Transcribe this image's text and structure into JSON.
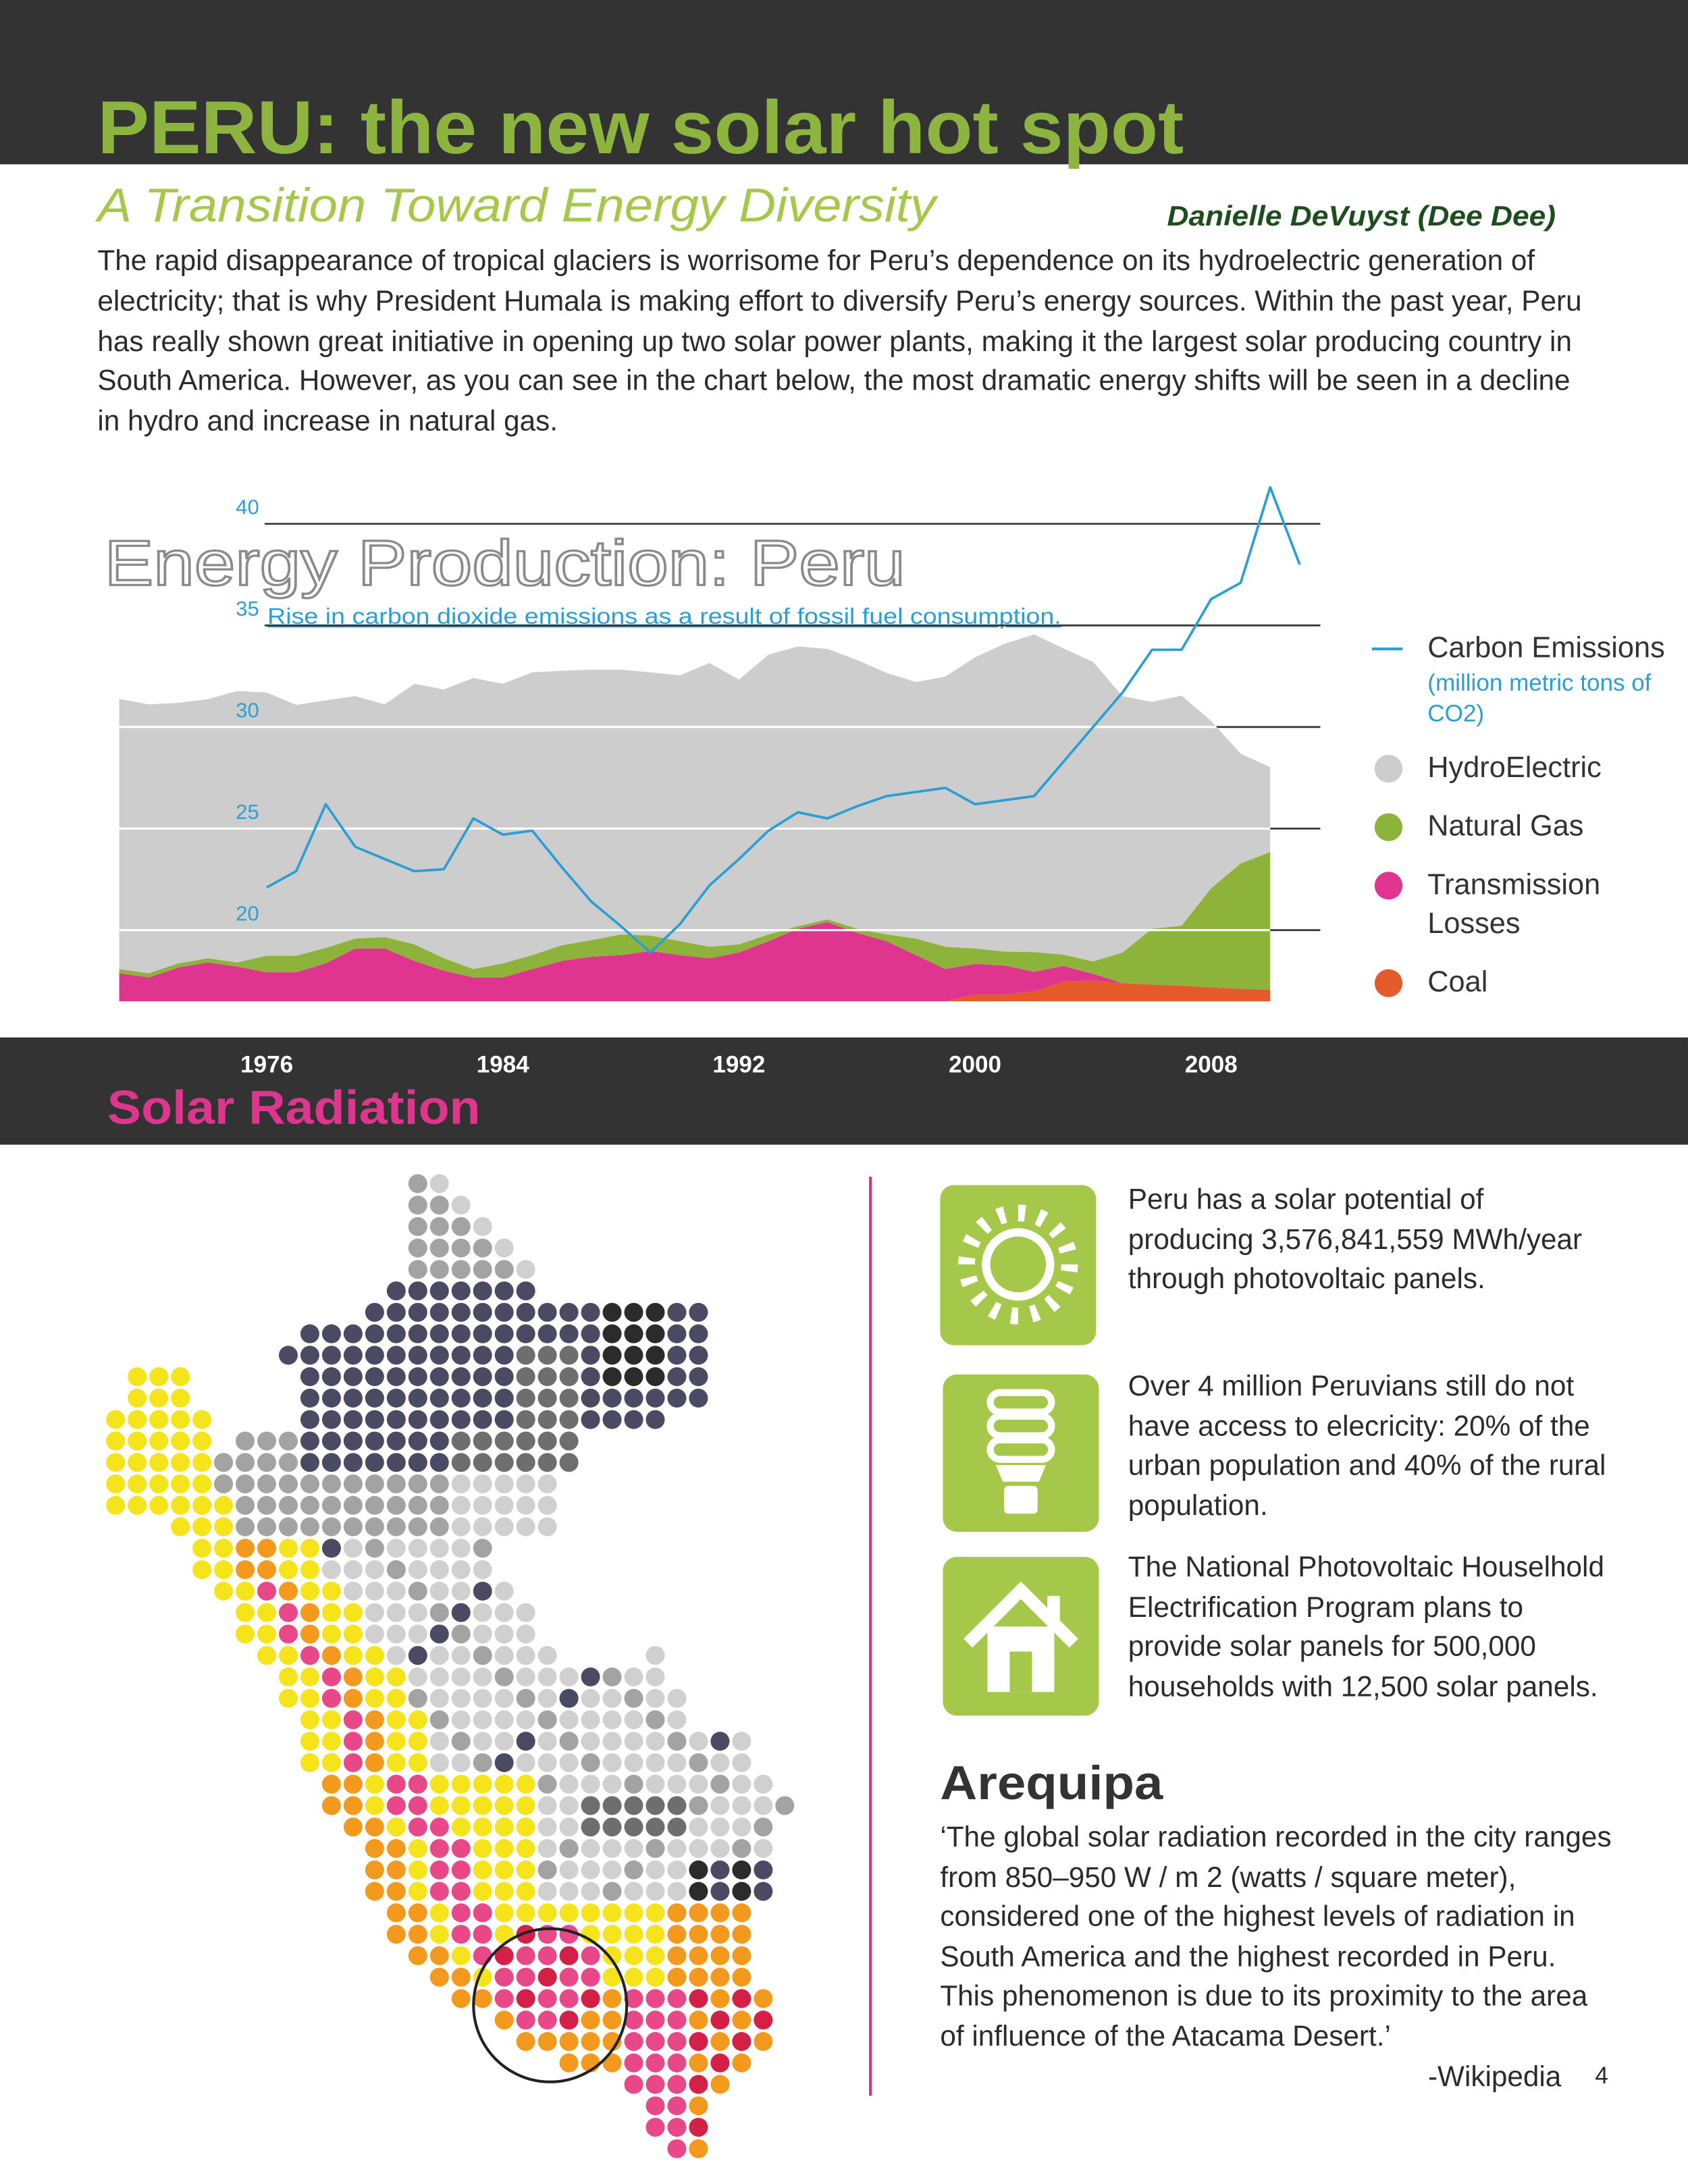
{
  "header": {
    "title": "PERU: the new solar hot spot",
    "subtitle": "A Transition Toward Energy Diversity",
    "author": "Danielle DeVuyst (Dee Dee)"
  },
  "intro": "The rapid disappearance of tropical glaciers is worrisome for Peru’s dependence on its hydroelectric generation of electricity; that is why President Humala is making effort to diversify Peru’s energy sources. Within the past year, Peru has really shown great initiative in opening up two solar power plants, making it the largest solar producing country in South America.  However, as you can see in the chart below, the most dramatic energy shifts will be seen in a decline in hydro and increase in natural gas.",
  "chart_data": {
    "type": "area",
    "title": "Energy Production: Peru",
    "subtitle": "Rise in carbon dioxide emissions as a result of fossil fuel consumption.",
    "y_label": "(million metric tons of CO2)",
    "x": [
      1971,
      1972,
      1973,
      1974,
      1975,
      1976,
      1977,
      1978,
      1979,
      1980,
      1981,
      1982,
      1983,
      1984,
      1985,
      1986,
      1987,
      1988,
      1989,
      1990,
      1991,
      1992,
      1993,
      1994,
      1995,
      1996,
      1997,
      1998,
      1999,
      2000,
      2001,
      2002,
      2003,
      2004,
      2005,
      2006,
      2007,
      2008,
      2009,
      2010,
      2011
    ],
    "xlim": [
      1970.5,
      2011.7
    ],
    "xticks": [
      1976,
      1984,
      1992,
      2000,
      2008
    ],
    "ylim": [
      16.5,
      42
    ],
    "yticks": [
      20,
      25,
      30,
      35,
      40
    ],
    "y2lim": [
      0,
      100
    ],
    "grid": true,
    "legend": "right",
    "series": [
      {
        "name": "Carbon Emissions",
        "type": "line",
        "color": "#2a9fd6",
        "values": [
          null,
          null,
          null,
          null,
          null,
          22.1,
          22.9,
          26.2,
          24.1,
          23.5,
          22.9,
          23.0,
          25.5,
          24.7,
          24.9,
          23.1,
          21.4,
          20.2,
          18.9,
          20.3,
          22.2,
          23.5,
          24.9,
          25.8,
          25.5,
          26.1,
          26.6,
          26.8,
          27.0,
          26.2,
          26.4,
          26.6,
          28.3,
          30.0,
          31.7,
          33.8,
          33.8,
          36.3,
          37.1,
          41.8,
          38.0
        ]
      },
      {
        "name": "HydroElectric",
        "axis": "y2",
        "color": "#cdcdcd",
        "values": [
          52.2,
          51.9,
          50.3,
          50.0,
          52.4,
          50.8,
          48.4,
          47.8,
          46.8,
          44.9,
          50.3,
          51.9,
          56.2,
          54.0,
          54.6,
          53.0,
          52.2,
          51.1,
          50.8,
          51.3,
          54.8,
          51.1,
          54.0,
          54.0,
          52.2,
          51.9,
          50.5,
          49.5,
          52.2,
          56.2,
          59.4,
          61.3,
          59.1,
          57.8,
          49.5,
          43.8,
          44.4,
          32.3,
          21.2,
          16.4,
          null
        ]
      },
      {
        "name": "Natural Gas",
        "axis": "y2",
        "color": "#8db33a",
        "values": [
          0.8,
          0.8,
          0.8,
          0.8,
          0.8,
          3.2,
          3.2,
          3.0,
          1.9,
          2.2,
          3.2,
          2.4,
          1.6,
          2.7,
          2.7,
          3.0,
          3.2,
          4.0,
          3.0,
          2.7,
          2.2,
          1.6,
          1.3,
          0.5,
          0.5,
          0.8,
          1.3,
          3.2,
          4.3,
          3.0,
          2.7,
          3.8,
          2.2,
          2.4,
          5.9,
          10.8,
          11.6,
          19.1,
          24.2,
          26.6,
          null
        ]
      },
      {
        "name": "Transmission Losses",
        "axis": "y2",
        "color": "#e0358f",
        "values": [
          5.4,
          4.6,
          6.5,
          7.5,
          6.7,
          5.6,
          5.6,
          7.3,
          10.2,
          10.2,
          7.8,
          5.9,
          4.6,
          4.6,
          6.2,
          7.8,
          8.6,
          8.9,
          9.7,
          8.9,
          8.3,
          9.4,
          11.6,
          14.0,
          15.3,
          13.2,
          11.6,
          8.9,
          6.2,
          5.9,
          5.6,
          3.8,
          3.0,
          1.3,
          0,
          0,
          0,
          0,
          0,
          0,
          null
        ]
      },
      {
        "name": "Coal",
        "axis": "y2",
        "color": "#e55a2b",
        "values": [
          0,
          0,
          0,
          0,
          0,
          0,
          0,
          0,
          0,
          0,
          0,
          0,
          0,
          0,
          0,
          0,
          0,
          0,
          0,
          0,
          0,
          0,
          0,
          0,
          0,
          0,
          0,
          0,
          0,
          1.3,
          1.3,
          1.9,
          3.8,
          4.0,
          3.5,
          3.2,
          3.0,
          2.7,
          2.4,
          2.2,
          null
        ]
      }
    ]
  },
  "section_title": "Solar Radiation",
  "facts": [
    "Peru has a solar potential of producing 3,576,841,559 MWh/year through photovoltaic panels.",
    "Over 4 million Peruvians still do not have access to elecricity: 20% of the urban population and 40% of the rural population.",
    "The National Photovoltaic Houselhold Electrification Program plans to provide solar panels for 500,000 households with 12,500 solar panels."
  ],
  "quote": {
    "heading": "Arequipa",
    "text": "‘The global solar radiation recorded in the city ranges from 850–950 W / m 2 (watts / square meter), considered one of the highest levels of radiation in South America and the highest recorded in Peru. This phenomenon is due to its proximity to the area of influence of the Atacama Desert.’",
    "source": "-Wikipedia"
  },
  "page_number": "4"
}
